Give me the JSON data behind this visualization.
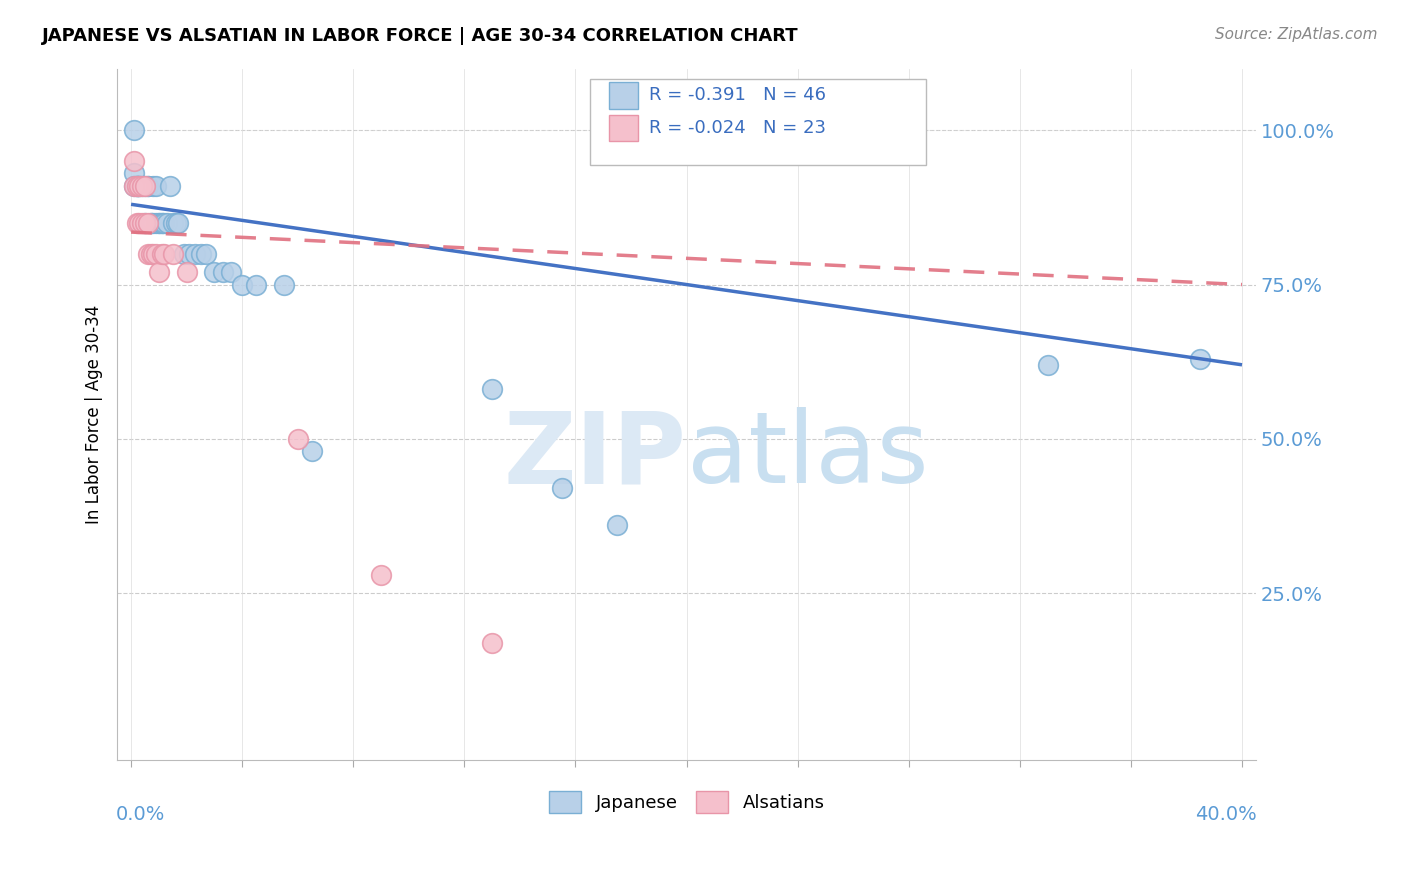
{
  "title": "JAPANESE VS ALSATIAN IN LABOR FORCE | AGE 30-34 CORRELATION CHART",
  "source": "Source: ZipAtlas.com",
  "ylabel": "In Labor Force | Age 30-34",
  "ytick_vals": [
    0.25,
    0.5,
    0.75,
    1.0
  ],
  "ytick_labels": [
    "25.0%",
    "50.0%",
    "75.0%",
    "100.0%"
  ],
  "xlim": [
    0.0,
    0.4
  ],
  "ylim": [
    -0.02,
    1.1
  ],
  "legend_r_japanese": "-0.391",
  "legend_n_japanese": "46",
  "legend_r_alsatian": "-0.024",
  "legend_n_alsatian": "23",
  "japanese_color": "#b8d0e8",
  "japanese_edge": "#7aafd4",
  "alsatian_color": "#f5c0cc",
  "alsatian_edge": "#e895a8",
  "line_japanese_color": "#4472c4",
  "line_alsatian_color": "#e07080",
  "watermark_color": "#dce9f5",
  "japanese_x": [
    0.001,
    0.001,
    0.001,
    0.002,
    0.002,
    0.002,
    0.003,
    0.003,
    0.004,
    0.005,
    0.005,
    0.006,
    0.006,
    0.007,
    0.007,
    0.008,
    0.008,
    0.009,
    0.009,
    0.01,
    0.01,
    0.011,
    0.011,
    0.012,
    0.013,
    0.014,
    0.015,
    0.016,
    0.017,
    0.019,
    0.021,
    0.023,
    0.025,
    0.027,
    0.03,
    0.033,
    0.036,
    0.04,
    0.045,
    0.055,
    0.065,
    0.13,
    0.155,
    0.175,
    0.33,
    0.385
  ],
  "japanese_y": [
    1.0,
    0.93,
    0.91,
    0.91,
    0.91,
    0.91,
    0.91,
    0.91,
    0.91,
    0.91,
    0.85,
    0.91,
    0.91,
    0.85,
    0.85,
    0.85,
    0.91,
    0.85,
    0.91,
    0.85,
    0.85,
    0.85,
    0.85,
    0.85,
    0.85,
    0.91,
    0.85,
    0.85,
    0.85,
    0.8,
    0.8,
    0.8,
    0.8,
    0.8,
    0.77,
    0.77,
    0.77,
    0.75,
    0.75,
    0.75,
    0.48,
    0.58,
    0.42,
    0.36,
    0.62,
    0.63
  ],
  "alsatian_x": [
    0.001,
    0.001,
    0.002,
    0.002,
    0.003,
    0.003,
    0.004,
    0.004,
    0.005,
    0.005,
    0.006,
    0.006,
    0.007,
    0.008,
    0.009,
    0.01,
    0.011,
    0.012,
    0.015,
    0.02,
    0.06,
    0.09,
    0.13
  ],
  "alsatian_y": [
    0.95,
    0.91,
    0.91,
    0.85,
    0.91,
    0.85,
    0.91,
    0.85,
    0.91,
    0.85,
    0.85,
    0.8,
    0.8,
    0.8,
    0.8,
    0.77,
    0.8,
    0.8,
    0.8,
    0.77,
    0.5,
    0.28,
    0.17
  ],
  "jap_line_x0": 0.0,
  "jap_line_y0": 0.88,
  "jap_line_x1": 0.4,
  "jap_line_y1": 0.62,
  "als_line_x0": 0.0,
  "als_line_y0": 0.835,
  "als_line_x1": 0.4,
  "als_line_y1": 0.75
}
